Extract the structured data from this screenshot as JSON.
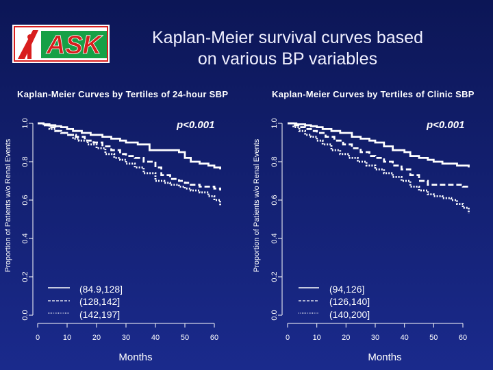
{
  "header": {
    "title_line1": "Kaplan-Meier survival curves based",
    "title_line2": "on various BP variables",
    "logo_text": "ASK"
  },
  "colors": {
    "background": "#14207a",
    "logo_red": "#d81e1e",
    "logo_green": "#16a046",
    "curve": "#ffffff"
  },
  "chart_data": [
    {
      "type": "line",
      "title": "Kaplan-Meier Curves by Tertiles of 24-hour SBP",
      "annotation": "p<0.001",
      "xlabel": "Months",
      "ylabel": "Proportion of Patients w/o Renal Events",
      "xlim": [
        0,
        60
      ],
      "ylim": [
        0,
        1
      ],
      "xticks": [
        0,
        10,
        20,
        30,
        40,
        50,
        60
      ],
      "yticks": [
        "0.0",
        "0.2",
        "0.4",
        "0.6",
        "0.8",
        "1.0"
      ],
      "legend_position": "bottom-left",
      "series": [
        {
          "name": "(84.9,128]",
          "style": "solid",
          "x": [
            0,
            2,
            4,
            6,
            8,
            10,
            12,
            15,
            18,
            22,
            25,
            28,
            30,
            34,
            38,
            40,
            45,
            48,
            50,
            52,
            55,
            58,
            60,
            62
          ],
          "y": [
            1.0,
            0.995,
            0.99,
            0.985,
            0.98,
            0.97,
            0.96,
            0.95,
            0.94,
            0.93,
            0.92,
            0.91,
            0.9,
            0.89,
            0.86,
            0.86,
            0.86,
            0.85,
            0.82,
            0.8,
            0.79,
            0.78,
            0.77,
            0.76
          ]
        },
        {
          "name": "(128,142]",
          "style": "dashed",
          "x": [
            0,
            2,
            4,
            6,
            8,
            10,
            13,
            16,
            19,
            22,
            25,
            28,
            30,
            33,
            36,
            40,
            42,
            45,
            48,
            50,
            52,
            55,
            58,
            60,
            62
          ],
          "y": [
            1.0,
            0.99,
            0.98,
            0.96,
            0.95,
            0.94,
            0.93,
            0.91,
            0.9,
            0.88,
            0.86,
            0.84,
            0.83,
            0.82,
            0.8,
            0.77,
            0.73,
            0.71,
            0.7,
            0.69,
            0.68,
            0.67,
            0.67,
            0.66,
            0.65
          ]
        },
        {
          "name": "(142,197]",
          "style": "dotted",
          "x": [
            0,
            2,
            4,
            6,
            8,
            10,
            12,
            14,
            17,
            20,
            23,
            26,
            28,
            30,
            33,
            36,
            40,
            43,
            45,
            48,
            50,
            52,
            55,
            58,
            60,
            62
          ],
          "y": [
            1.0,
            0.99,
            0.97,
            0.96,
            0.95,
            0.94,
            0.92,
            0.91,
            0.89,
            0.87,
            0.84,
            0.82,
            0.81,
            0.79,
            0.77,
            0.74,
            0.7,
            0.69,
            0.68,
            0.67,
            0.66,
            0.65,
            0.64,
            0.62,
            0.6,
            0.57
          ]
        }
      ]
    },
    {
      "type": "line",
      "title": "Kaplan-Meier Curves by Tertiles of Clinic SBP",
      "annotation": "p<0.001",
      "xlabel": "Months",
      "ylabel": "Proportion of Patients w/o Renal Events",
      "xlim": [
        0,
        60
      ],
      "ylim": [
        0,
        1
      ],
      "xticks": [
        0,
        10,
        20,
        30,
        40,
        50,
        60
      ],
      "yticks": [
        "0.0",
        "0.2",
        "0.4",
        "0.6",
        "0.8",
        "1.0"
      ],
      "legend_position": "bottom-left",
      "series": [
        {
          "name": "(94,126]",
          "style": "solid",
          "x": [
            0,
            3,
            6,
            8,
            10,
            12,
            15,
            18,
            22,
            25,
            28,
            30,
            33,
            36,
            40,
            42,
            45,
            48,
            50,
            53,
            55,
            58,
            60,
            62
          ],
          "y": [
            1.0,
            0.995,
            0.99,
            0.985,
            0.98,
            0.97,
            0.96,
            0.95,
            0.93,
            0.92,
            0.91,
            0.9,
            0.88,
            0.86,
            0.85,
            0.83,
            0.82,
            0.81,
            0.8,
            0.79,
            0.79,
            0.78,
            0.78,
            0.77
          ]
        },
        {
          "name": "(126,140]",
          "style": "dashed",
          "x": [
            0,
            2,
            4,
            6,
            8,
            10,
            13,
            16,
            19,
            22,
            25,
            28,
            30,
            33,
            36,
            39,
            42,
            45,
            48,
            50,
            55,
            58,
            60,
            62
          ],
          "y": [
            1.0,
            0.99,
            0.98,
            0.97,
            0.96,
            0.95,
            0.93,
            0.91,
            0.89,
            0.87,
            0.85,
            0.83,
            0.82,
            0.8,
            0.78,
            0.76,
            0.73,
            0.7,
            0.68,
            0.68,
            0.68,
            0.68,
            0.67,
            0.66
          ]
        },
        {
          "name": "(140,200]",
          "style": "dotted",
          "x": [
            0,
            2,
            4,
            6,
            8,
            10,
            12,
            15,
            18,
            21,
            24,
            27,
            30,
            33,
            36,
            39,
            42,
            45,
            48,
            50,
            53,
            56,
            58,
            60,
            62
          ],
          "y": [
            1.0,
            0.98,
            0.96,
            0.94,
            0.93,
            0.91,
            0.89,
            0.86,
            0.84,
            0.82,
            0.8,
            0.78,
            0.76,
            0.74,
            0.72,
            0.7,
            0.67,
            0.65,
            0.63,
            0.62,
            0.61,
            0.6,
            0.58,
            0.56,
            0.53
          ]
        }
      ]
    }
  ]
}
